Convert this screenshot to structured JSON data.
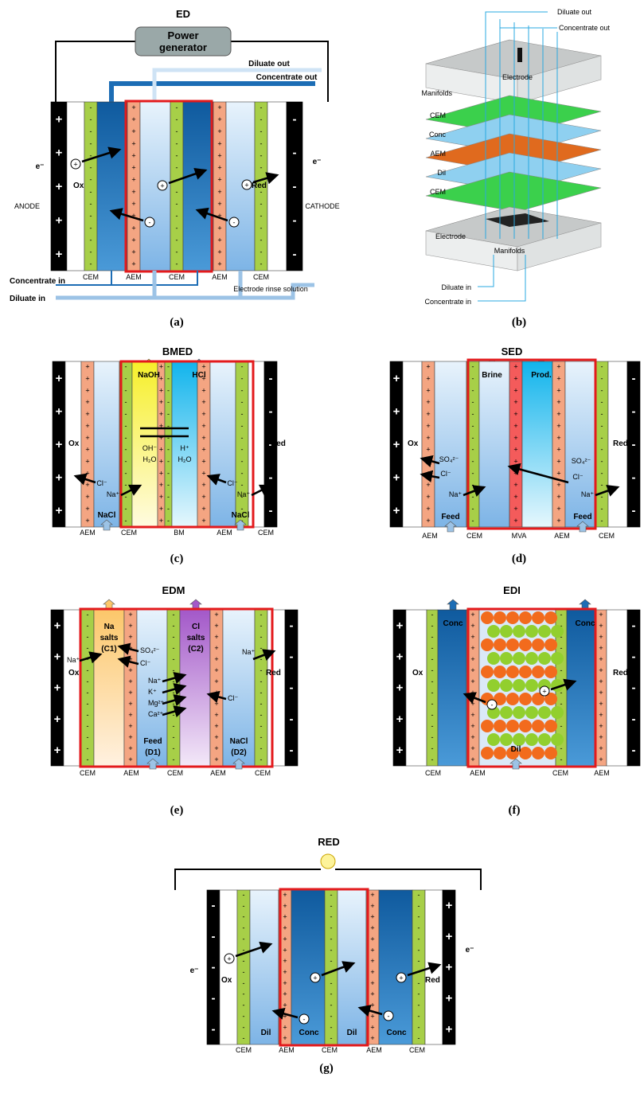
{
  "panels": {
    "a": {
      "title": "ED",
      "caption": "(a)",
      "power": [
        "Power",
        "generator"
      ],
      "diluate_out": "Diluate out",
      "concentrate_out": "Concentrate out",
      "concentrate_in": "Concentrate in",
      "diluate_in": "Diluate in",
      "rinse": "Electrode rinse solution",
      "anode": "ANODE",
      "cathode": "CATHODE",
      "ox": "Ox",
      "red": "Red",
      "electron": "e⁻",
      "membranes": [
        "CEM",
        "AEM",
        "CEM",
        "AEM",
        "CEM"
      ]
    },
    "b": {
      "caption": "(b)",
      "diluate_out": "Diluate out",
      "concentrate_out": "Concentrate out",
      "electrode_top": "Electrode",
      "manifolds_top": "Manifolds",
      "layers": [
        "CEM",
        "Conc",
        "AEM",
        "Dil",
        "CEM"
      ],
      "electrode_bottom": "Electrode",
      "manifolds_bottom": "Manifolds",
      "diluate_in": "Diluate in",
      "concentrate_in": "Concentrate in"
    },
    "c": {
      "title": "BMED",
      "caption": "(c)",
      "naoh": "NaOH",
      "hcl": "HCl",
      "ox": "Ox",
      "red": "Red",
      "oh": "OH⁻",
      "h": "H⁺",
      "h2o_left": "H₂O",
      "h2o_right": "H₂O",
      "cl_left": "Cl⁻",
      "cl_right": "Cl⁻",
      "na_left": "Na⁺",
      "na_right": "Na⁺",
      "nacl_left": "NaCl",
      "nacl_right": "NaCl",
      "membranes": [
        "AEM",
        "CEM",
        "BM",
        "AEM",
        "CEM"
      ]
    },
    "d": {
      "title": "SED",
      "caption": "(d)",
      "brine": "Brine",
      "prod": "Prod.",
      "ox": "Ox",
      "red": "Red",
      "so4_left": "SO₄²⁻",
      "so4_right": "SO₄²⁻",
      "cl_left": "Cl⁻",
      "cl_right": "Cl⁻",
      "na_left": "Na⁺",
      "na_right": "Na⁺",
      "feed_left": "Feed",
      "feed_right": "Feed",
      "membranes": [
        "AEM",
        "CEM",
        "MVA",
        "AEM",
        "CEM"
      ]
    },
    "e": {
      "title": "EDM",
      "caption": "(e)",
      "na_salts": [
        "Na",
        "salts",
        "(C1)"
      ],
      "cl_salts": [
        "Cl",
        "salts",
        "(C2)"
      ],
      "ox": "Ox",
      "red": "Red",
      "na_left": "Na⁺",
      "na_right": "Na⁺",
      "so4": "SO₄²⁻",
      "cl_left": "Cl⁻",
      "cl_right": "Cl⁻",
      "cations": [
        "Na⁺",
        "K⁺",
        "Mg²⁺",
        "Ca²⁺"
      ],
      "feed": [
        "Feed",
        "(D1)"
      ],
      "nacl": [
        "NaCl",
        "(D2)"
      ],
      "membranes": [
        "CEM",
        "AEM",
        "CEM",
        "AEM",
        "CEM"
      ]
    },
    "f": {
      "title": "EDI",
      "caption": "(f)",
      "conc_left": "Conc",
      "conc_right": "Conc",
      "dil": "Dil",
      "ox": "Ox",
      "red": "Red",
      "membranes": [
        "CEM",
        "AEM",
        "CEM",
        "AEM"
      ]
    },
    "g": {
      "title": "RED",
      "caption": "(g)",
      "ox": "Ox",
      "red": "Red",
      "electron": "e⁻",
      "labels": [
        "Dil",
        "Conc",
        "Dil",
        "Conc"
      ],
      "membranes": [
        "CEM",
        "AEM",
        "CEM",
        "AEM",
        "CEM"
      ]
    }
  },
  "colors": {
    "cem": "#a7cf48",
    "aem": "#f4a582",
    "electrode": "#000000",
    "frame": "#e31a1c",
    "light_blue": "#cfe3f5",
    "dark_blue": "#1e6fb5",
    "bm": "#f4a582",
    "mva": "#f45b5b"
  }
}
